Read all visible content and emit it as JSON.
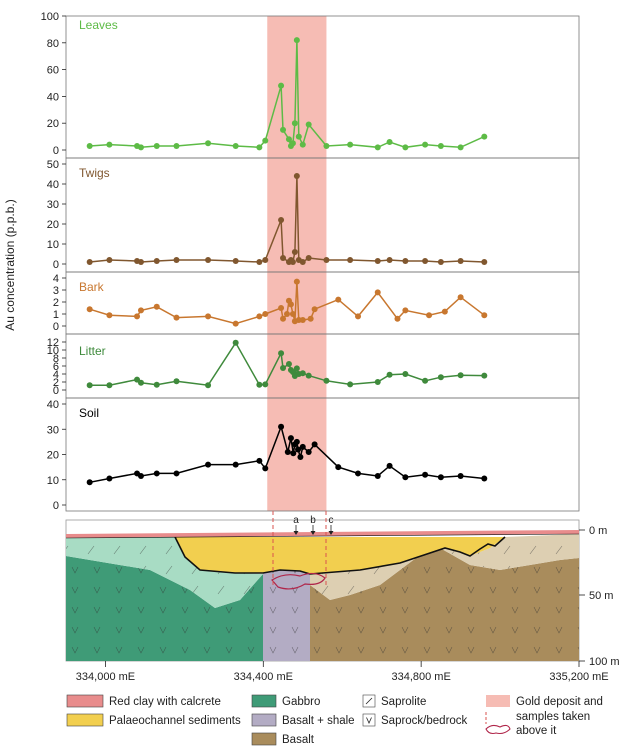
{
  "chart_data": [
    {
      "type": "line",
      "title": "Leaves",
      "ylim": [
        0,
        100
      ],
      "yticks": [
        0,
        20,
        40,
        60,
        80,
        100
      ],
      "color": "#5dbb46",
      "x": [
        333960,
        334010,
        334080,
        334090,
        334130,
        334180,
        334260,
        334330,
        334390,
        334405,
        334445,
        334450,
        334465,
        334470,
        334475,
        334480,
        334485,
        334490,
        334500,
        334515,
        334560,
        334620,
        334690,
        334720,
        334760,
        334810,
        334850,
        334900,
        334960
      ],
      "y": [
        3,
        4,
        3,
        2,
        3,
        3,
        5,
        3,
        2,
        7,
        48,
        15,
        8,
        3,
        5,
        20,
        82,
        10,
        4,
        19,
        3,
        4,
        2,
        6,
        2,
        4,
        3,
        2,
        10
      ]
    },
    {
      "type": "line",
      "title": "Twigs",
      "ylim": [
        0,
        50
      ],
      "yticks": [
        0,
        10,
        20,
        30,
        40,
        50
      ],
      "color": "#80572f",
      "x": [
        333960,
        334010,
        334080,
        334090,
        334130,
        334180,
        334260,
        334330,
        334390,
        334405,
        334445,
        334450,
        334465,
        334470,
        334475,
        334480,
        334485,
        334490,
        334500,
        334515,
        334560,
        334620,
        334690,
        334720,
        334760,
        334810,
        334850,
        334900,
        334960
      ],
      "y": [
        1,
        2,
        1.5,
        1,
        1.5,
        2,
        2,
        1.5,
        1,
        2,
        22,
        3,
        1,
        2,
        1,
        6,
        44,
        2,
        1,
        3,
        2,
        2,
        1.5,
        2,
        1.5,
        1.5,
        1,
        1.5,
        1
      ]
    },
    {
      "type": "line",
      "title": "Bark",
      "ylim": [
        0,
        4
      ],
      "yticks": [
        0,
        1,
        2,
        3,
        4
      ],
      "color": "#c8772f",
      "x": [
        333960,
        334010,
        334080,
        334090,
        334130,
        334180,
        334260,
        334330,
        334390,
        334405,
        334445,
        334450,
        334460,
        334465,
        334470,
        334475,
        334480,
        334485,
        334490,
        334500,
        334520,
        334530,
        334590,
        334640,
        334690,
        334740,
        334760,
        334820,
        334860,
        334900,
        334960
      ],
      "y": [
        1.4,
        0.9,
        0.8,
        1.3,
        1.6,
        0.7,
        0.8,
        0.2,
        0.8,
        1.0,
        1.5,
        0.6,
        1.0,
        2.1,
        1.8,
        1.0,
        0.4,
        3.7,
        0.5,
        0.5,
        0.6,
        1.4,
        2.2,
        0.8,
        2.8,
        0.6,
        1.3,
        0.9,
        1.2,
        2.4,
        0.9
      ]
    },
    {
      "type": "line",
      "title": "Litter",
      "ylim": [
        0,
        12
      ],
      "yticks": [
        0,
        2,
        4,
        6,
        8,
        10,
        12
      ],
      "color": "#3f8a3c",
      "x": [
        333960,
        334010,
        334080,
        334090,
        334130,
        334180,
        334260,
        334330,
        334390,
        334405,
        334445,
        334450,
        334465,
        334470,
        334475,
        334480,
        334485,
        334490,
        334500,
        334515,
        334560,
        334620,
        334690,
        334720,
        334760,
        334810,
        334850,
        334900,
        334960
      ],
      "y": [
        1.2,
        1.2,
        2.6,
        1.8,
        1.3,
        2.2,
        1.2,
        11.8,
        1.3,
        1.4,
        9.2,
        5.5,
        6.5,
        5.0,
        4.5,
        3.5,
        5.4,
        4.0,
        4.2,
        3.6,
        2.3,
        1.4,
        2.0,
        3.8,
        4.0,
        2.3,
        3.2,
        3.7,
        3.6
      ]
    },
    {
      "type": "line",
      "title": "Soil",
      "ylim": [
        0,
        40
      ],
      "yticks": [
        0,
        10,
        20,
        30,
        40
      ],
      "color": "#000000",
      "x": [
        333960,
        334010,
        334080,
        334090,
        334130,
        334180,
        334260,
        334330,
        334390,
        334405,
        334445,
        334462,
        334470,
        334476,
        334480,
        334485,
        334488,
        334494,
        334500,
        334515,
        334530,
        334590,
        334640,
        334690,
        334720,
        334760,
        334810,
        334850,
        334900,
        334960
      ],
      "y": [
        9,
        10.5,
        12.5,
        11.5,
        12.5,
        12.5,
        16,
        16,
        17.5,
        14.5,
        31,
        21,
        26.5,
        20.5,
        24,
        25,
        22,
        19,
        23,
        21,
        24,
        15,
        12.5,
        11.5,
        15.5,
        11,
        12,
        11,
        11.5,
        10.5
      ]
    }
  ],
  "shared": {
    "y_axis_label": "Au concentration (p.p.b.)",
    "xlim": [
      333900,
      335200
    ],
    "x_ticks": [
      334000,
      334400,
      334800,
      335200
    ],
    "x_tick_labels": [
      "334,000 mE",
      "334,400 mE",
      "334,800 mE",
      "335,200 mE"
    ],
    "gold_deposit_range": [
      334410,
      334560
    ]
  },
  "cross_section": {
    "depth_ticks": [
      "0 m",
      "50 m",
      "100 m"
    ],
    "sample_markers": [
      "a",
      "b",
      "c"
    ]
  },
  "legend": [
    {
      "label": "Red clay with calcrete",
      "swatch": "redclay"
    },
    {
      "label": "Palaeochannel sediments",
      "swatch": "palaeo"
    },
    {
      "label": "Gabbro",
      "swatch": "gabbro"
    },
    {
      "label": "Basalt + shale",
      "swatch": "basaltshale"
    },
    {
      "label": "Basalt",
      "swatch": "basalt"
    },
    {
      "label": "Saprolite",
      "swatch": "saprolite"
    },
    {
      "label": "Saprock/bedrock",
      "swatch": "saprock"
    },
    {
      "label": "Gold deposit and",
      "swatch": "gold"
    },
    {
      "label": "samples taken",
      "swatch": "samples"
    },
    {
      "label": "above it",
      "swatch": "none"
    }
  ],
  "colors": {
    "gold_band": "#f6bcb4",
    "red_clay": "#e88c8c",
    "palaeochannel": "#f2cf4f",
    "gabbro": "#3f9b77",
    "gabbro_saprolite": "#a8dcc4",
    "basalt_shale": "#b3acc4",
    "basalt": "#a98c5c",
    "basalt_saprolite": "#ddcfb2",
    "sample_outline": "#b0264a"
  }
}
